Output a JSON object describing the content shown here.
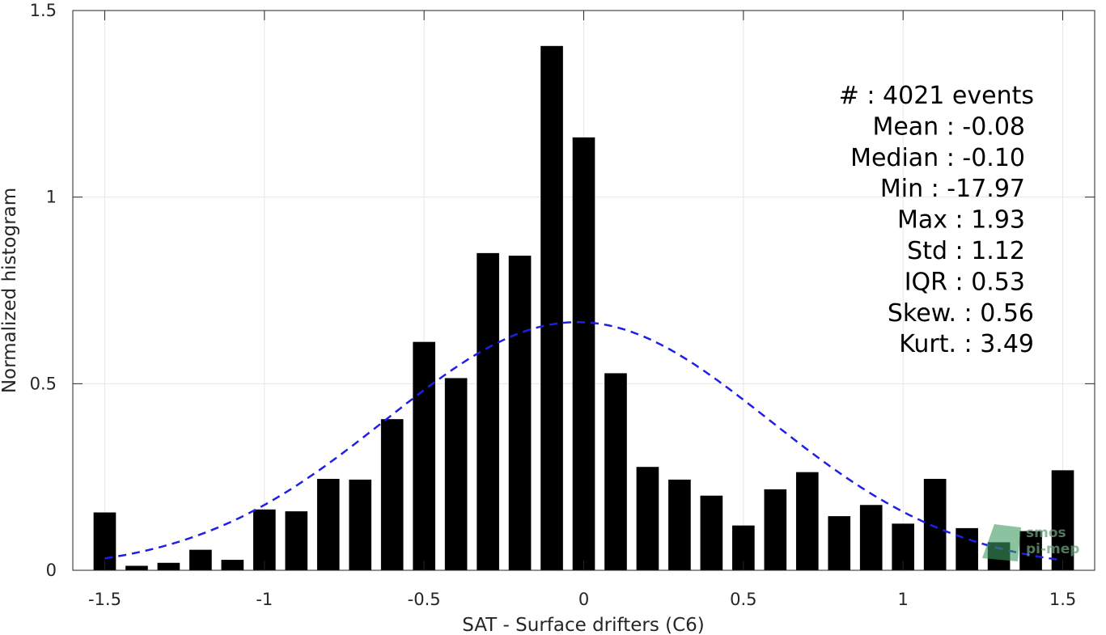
{
  "chart_data": {
    "type": "bar",
    "xlabel": "SAT - Surface drifters (C6)",
    "ylabel": "Normalized histogram",
    "xlim": [
      -1.6,
      1.6
    ],
    "ylim": [
      0,
      1.5
    ],
    "x_ticks": [
      "-1.5",
      "-1",
      "-0.5",
      "0",
      "0.5",
      "1",
      "1.5"
    ],
    "x_tick_values": [
      -1.5,
      -1,
      -0.5,
      0,
      0.5,
      1,
      1.5
    ],
    "y_ticks": [
      "0",
      "0.5",
      "1",
      "1.5"
    ],
    "y_tick_values": [
      0,
      0.5,
      1,
      1.5
    ],
    "grid": true,
    "bar_color": "#000000",
    "bars": {
      "x": [
        -1.5,
        -1.4,
        -1.3,
        -1.2,
        -1.1,
        -1.0,
        -0.9,
        -0.8,
        -0.7,
        -0.6,
        -0.5,
        -0.4,
        -0.3,
        -0.2,
        -0.1,
        0.0,
        0.1,
        0.2,
        0.3,
        0.4,
        0.5,
        0.6,
        0.7,
        0.8,
        0.9,
        1.0,
        1.1,
        1.2,
        1.3,
        1.4,
        1.5
      ],
      "values": [
        0.155,
        0.012,
        0.02,
        0.055,
        0.028,
        0.163,
        0.158,
        0.245,
        0.243,
        0.405,
        0.612,
        0.515,
        0.85,
        0.843,
        1.405,
        1.16,
        0.528,
        0.277,
        0.243,
        0.2,
        0.12,
        0.217,
        0.263,
        0.145,
        0.175,
        0.125,
        0.245,
        0.113,
        0.075,
        0.105,
        0.268
      ]
    },
    "fit_curve": {
      "style": "dashed",
      "color": "#1f1fe6",
      "distribution": "normal",
      "mean": -0.02,
      "std": 0.6,
      "peak": 0.665,
      "x_range": [
        -1.5,
        1.5
      ]
    },
    "stats": [
      "#  : 4021 events",
      "Mean : -0.08",
      "Median : -0.10",
      "Min : -17.97",
      "Max : 1.93",
      "Std : 1.12",
      "IQR : 0.53",
      "Skew. : 0.56",
      "Kurt. : 3.49"
    ]
  },
  "logo": {
    "line1": "smos",
    "line2": "pi-mep",
    "color": "#3d9a60"
  }
}
